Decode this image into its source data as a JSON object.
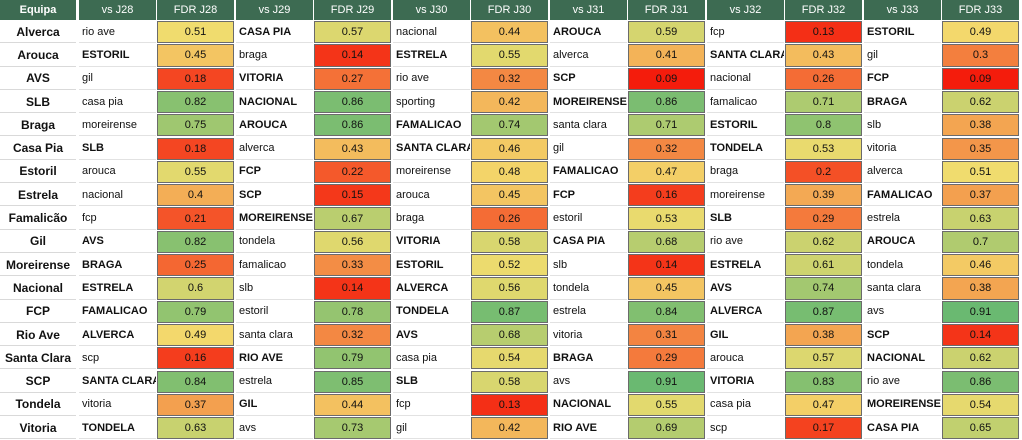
{
  "table": {
    "team_header": "Equipa",
    "rounds": [
      {
        "vs": "vs J28",
        "fdr": "FDR J28"
      },
      {
        "vs": "vs J29",
        "fdr": "FDR J29"
      },
      {
        "vs": "vs J30",
        "fdr": "FDR J30"
      },
      {
        "vs": "vs J31",
        "fdr": "FDR J31"
      },
      {
        "vs": "vs J32",
        "fdr": "FDR J32"
      },
      {
        "vs": "vs J33",
        "fdr": "FDR J33"
      }
    ],
    "rows": [
      {
        "team": "Alverca",
        "fixtures": [
          {
            "opp": "rio ave",
            "fdr": 0.51
          },
          {
            "opp": "CASA PIA",
            "fdr": 0.57
          },
          {
            "opp": "nacional",
            "fdr": 0.44
          },
          {
            "opp": "AROUCA",
            "fdr": 0.59
          },
          {
            "opp": "fcp",
            "fdr": 0.13
          },
          {
            "opp": "ESTORIL",
            "fdr": 0.49
          }
        ]
      },
      {
        "team": "Arouca",
        "fixtures": [
          {
            "opp": "ESTORIL",
            "fdr": 0.45
          },
          {
            "opp": "braga",
            "fdr": 0.14
          },
          {
            "opp": "ESTRELA",
            "fdr": 0.55
          },
          {
            "opp": "alverca",
            "fdr": 0.41
          },
          {
            "opp": "SANTA CLARA",
            "fdr": 0.43
          },
          {
            "opp": "gil",
            "fdr": 0.3
          }
        ]
      },
      {
        "team": "AVS",
        "fixtures": [
          {
            "opp": "gil",
            "fdr": 0.18
          },
          {
            "opp": "VITORIA",
            "fdr": 0.27
          },
          {
            "opp": "rio ave",
            "fdr": 0.32
          },
          {
            "opp": "SCP",
            "fdr": 0.09
          },
          {
            "opp": "nacional",
            "fdr": 0.26
          },
          {
            "opp": "FCP",
            "fdr": 0.09
          }
        ]
      },
      {
        "team": "SLB",
        "fixtures": [
          {
            "opp": "casa pia",
            "fdr": 0.82
          },
          {
            "opp": "NACIONAL",
            "fdr": 0.86
          },
          {
            "opp": "sporting",
            "fdr": 0.42
          },
          {
            "opp": "MOREIRENSE",
            "fdr": 0.86
          },
          {
            "opp": "famalicao",
            "fdr": 0.71
          },
          {
            "opp": "BRAGA",
            "fdr": 0.62
          }
        ]
      },
      {
        "team": "Braga",
        "fixtures": [
          {
            "opp": "moreirense",
            "fdr": 0.75
          },
          {
            "opp": "AROUCA",
            "fdr": 0.86
          },
          {
            "opp": "FAMALICAO",
            "fdr": 0.74
          },
          {
            "opp": "santa clara",
            "fdr": 0.71
          },
          {
            "opp": "ESTORIL",
            "fdr": 0.8
          },
          {
            "opp": "slb",
            "fdr": 0.38
          }
        ]
      },
      {
        "team": "Casa Pia",
        "fixtures": [
          {
            "opp": "SLB",
            "fdr": 0.18
          },
          {
            "opp": "alverca",
            "fdr": 0.43
          },
          {
            "opp": "SANTA CLARA",
            "fdr": 0.46
          },
          {
            "opp": "gil",
            "fdr": 0.32
          },
          {
            "opp": "TONDELA",
            "fdr": 0.53
          },
          {
            "opp": "vitoria",
            "fdr": 0.35
          }
        ]
      },
      {
        "team": "Estoril",
        "fixtures": [
          {
            "opp": "arouca",
            "fdr": 0.55
          },
          {
            "opp": "FCP",
            "fdr": 0.22
          },
          {
            "opp": "moreirense",
            "fdr": 0.48
          },
          {
            "opp": "FAMALICAO",
            "fdr": 0.47
          },
          {
            "opp": "braga",
            "fdr": 0.2
          },
          {
            "opp": "alverca",
            "fdr": 0.51
          }
        ]
      },
      {
        "team": "Estrela",
        "fixtures": [
          {
            "opp": "nacional",
            "fdr": 0.4
          },
          {
            "opp": "SCP",
            "fdr": 0.15
          },
          {
            "opp": "arouca",
            "fdr": 0.45
          },
          {
            "opp": "FCP",
            "fdr": 0.16
          },
          {
            "opp": "moreirense",
            "fdr": 0.39
          },
          {
            "opp": "FAMALICAO",
            "fdr": 0.37
          }
        ]
      },
      {
        "team": "Famalicão",
        "fixtures": [
          {
            "opp": "fcp",
            "fdr": 0.21
          },
          {
            "opp": "MOREIRENSE",
            "fdr": 0.67
          },
          {
            "opp": "braga",
            "fdr": 0.26
          },
          {
            "opp": "estoril",
            "fdr": 0.53
          },
          {
            "opp": "SLB",
            "fdr": 0.29
          },
          {
            "opp": "estrela",
            "fdr": 0.63
          }
        ]
      },
      {
        "team": "Gil",
        "fixtures": [
          {
            "opp": "AVS",
            "fdr": 0.82
          },
          {
            "opp": "tondela",
            "fdr": 0.56
          },
          {
            "opp": "VITORIA",
            "fdr": 0.58
          },
          {
            "opp": "CASA PIA",
            "fdr": 0.68
          },
          {
            "opp": "rio ave",
            "fdr": 0.62
          },
          {
            "opp": "AROUCA",
            "fdr": 0.7
          }
        ]
      },
      {
        "team": "Moreirense",
        "fixtures": [
          {
            "opp": "BRAGA",
            "fdr": 0.25
          },
          {
            "opp": "famalicao",
            "fdr": 0.33
          },
          {
            "opp": "ESTORIL",
            "fdr": 0.52
          },
          {
            "opp": "slb",
            "fdr": 0.14
          },
          {
            "opp": "ESTRELA",
            "fdr": 0.61
          },
          {
            "opp": "tondela",
            "fdr": 0.46
          }
        ]
      },
      {
        "team": "Nacional",
        "fixtures": [
          {
            "opp": "ESTRELA",
            "fdr": 0.6
          },
          {
            "opp": "slb",
            "fdr": 0.14
          },
          {
            "opp": "ALVERCA",
            "fdr": 0.56
          },
          {
            "opp": "tondela",
            "fdr": 0.45
          },
          {
            "opp": "AVS",
            "fdr": 0.74
          },
          {
            "opp": "santa clara",
            "fdr": 0.38
          }
        ]
      },
      {
        "team": "FCP",
        "fixtures": [
          {
            "opp": "FAMALICAO",
            "fdr": 0.79
          },
          {
            "opp": "estoril",
            "fdr": 0.78
          },
          {
            "opp": "TONDELA",
            "fdr": 0.87
          },
          {
            "opp": "estrela",
            "fdr": 0.84
          },
          {
            "opp": "ALVERCA",
            "fdr": 0.87
          },
          {
            "opp": "avs",
            "fdr": 0.91
          }
        ]
      },
      {
        "team": "Rio Ave",
        "fixtures": [
          {
            "opp": "ALVERCA",
            "fdr": 0.49
          },
          {
            "opp": "santa clara",
            "fdr": 0.32
          },
          {
            "opp": "AVS",
            "fdr": 0.68
          },
          {
            "opp": "vitoria",
            "fdr": 0.31
          },
          {
            "opp": "GIL",
            "fdr": 0.38
          },
          {
            "opp": "SCP",
            "fdr": 0.14
          }
        ]
      },
      {
        "team": "Santa Clara",
        "fixtures": [
          {
            "opp": "scp",
            "fdr": 0.16
          },
          {
            "opp": "RIO AVE",
            "fdr": 0.79
          },
          {
            "opp": "casa pia",
            "fdr": 0.54
          },
          {
            "opp": "BRAGA",
            "fdr": 0.29
          },
          {
            "opp": "arouca",
            "fdr": 0.57
          },
          {
            "opp": "NACIONAL",
            "fdr": 0.62
          }
        ]
      },
      {
        "team": "SCP",
        "fixtures": [
          {
            "opp": "SANTA CLARA",
            "fdr": 0.84
          },
          {
            "opp": "estrela",
            "fdr": 0.85
          },
          {
            "opp": "SLB",
            "fdr": 0.58
          },
          {
            "opp": "avs",
            "fdr": 0.91
          },
          {
            "opp": "VITORIA",
            "fdr": 0.83
          },
          {
            "opp": "rio ave",
            "fdr": 0.86
          }
        ]
      },
      {
        "team": "Tondela",
        "fixtures": [
          {
            "opp": "vitoria",
            "fdr": 0.37
          },
          {
            "opp": "GIL",
            "fdr": 0.44
          },
          {
            "opp": "fcp",
            "fdr": 0.13
          },
          {
            "opp": "NACIONAL",
            "fdr": 0.55
          },
          {
            "opp": "casa pia",
            "fdr": 0.47
          },
          {
            "opp": "MOREIRENSE",
            "fdr": 0.54
          }
        ]
      },
      {
        "team": "Vitoria",
        "fixtures": [
          {
            "opp": "TONDELA",
            "fdr": 0.63
          },
          {
            "opp": "avs",
            "fdr": 0.73
          },
          {
            "opp": "gil",
            "fdr": 0.42
          },
          {
            "opp": "RIO AVE",
            "fdr": 0.69
          },
          {
            "opp": "scp",
            "fdr": 0.17
          },
          {
            "opp": "CASA PIA",
            "fdr": 0.65
          }
        ]
      }
    ]
  },
  "colors": {
    "header_bg": "#3d6b52",
    "header_text": "#ffffff",
    "scale_low": "#f41c0c",
    "scale_mid": "#f3dd6e",
    "scale_high": "#6ab971"
  }
}
